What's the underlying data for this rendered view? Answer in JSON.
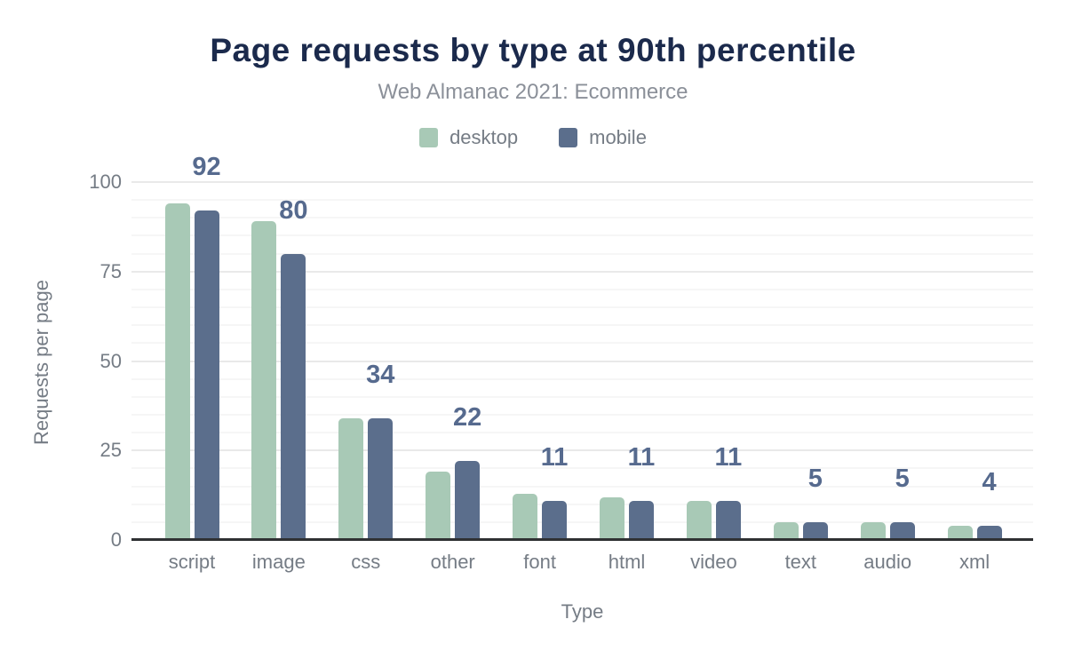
{
  "chart_data": {
    "type": "bar",
    "title": "Page requests by type at 90th percentile",
    "subtitle": "Web Almanac 2021: Ecommerce",
    "xlabel": "Type",
    "ylabel": "Requests per page",
    "categories": [
      "script",
      "image",
      "css",
      "other",
      "font",
      "html",
      "video",
      "text",
      "audio",
      "xml"
    ],
    "series": [
      {
        "name": "desktop",
        "color": "#a8c9b6",
        "values": [
          94,
          89,
          34,
          19,
          13,
          12,
          11,
          5,
          5,
          4
        ]
      },
      {
        "name": "mobile",
        "color": "#5b6e8c",
        "values": [
          92,
          80,
          34,
          22,
          11,
          11,
          11,
          5,
          5,
          4
        ]
      }
    ],
    "bar_labels": {
      "labeled_series": "mobile",
      "values": [
        "92",
        "80",
        "34",
        "22",
        "11",
        "11",
        "11",
        "5",
        "5",
        "4"
      ],
      "color": "#566a8e"
    },
    "yticks": [
      "0",
      "25",
      "50",
      "75",
      "100"
    ],
    "ylim": [
      0,
      100
    ],
    "grid": {
      "enabled": true,
      "minor_step": 5,
      "major_step": 25,
      "minor_color": "#f6f6f6",
      "major_color": "#e9e9e9"
    },
    "legend_position": "top",
    "colors": {
      "title": "#1b2a4c",
      "subtitle": "#8b9099",
      "axis_text": "#757c85",
      "axis_line": "#2f3133",
      "background": "#ffffff"
    }
  }
}
